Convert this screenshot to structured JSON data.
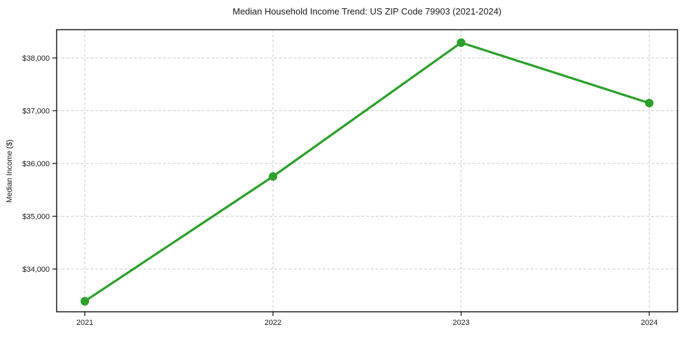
{
  "chart_data": {
    "type": "line",
    "title": "Median Household Income Trend: US ZIP Code 79903 (2021-2024)",
    "xlabel": "",
    "ylabel": "Median Income ($)",
    "x": [
      2021,
      2022,
      2023,
      2024
    ],
    "x_tick_labels": [
      "2021",
      "2022",
      "2023",
      "2024"
    ],
    "series": [
      {
        "name": "Median household income",
        "values": [
          33390,
          35755,
          38290,
          37145
        ]
      }
    ],
    "y_ticks": [
      {
        "value": 34000,
        "label": "$34,000"
      },
      {
        "value": 35000,
        "label": "$35,000"
      },
      {
        "value": 36000,
        "label": "$36,000"
      },
      {
        "value": 37000,
        "label": "$37,000"
      },
      {
        "value": 38000,
        "label": "$38,000"
      }
    ],
    "xlim": [
      2020.85,
      2024.15
    ],
    "ylim": [
      33190,
      38536
    ],
    "grid": true,
    "grid_style": "dashed",
    "legend": "none",
    "marker": "circle",
    "colors": {
      "line": "#2ca02c",
      "marker": "#2ca02c",
      "grid": "#cccccc",
      "axis": "#1a1a1a",
      "text": "#1a1a1a",
      "background": "#ffffff"
    }
  }
}
